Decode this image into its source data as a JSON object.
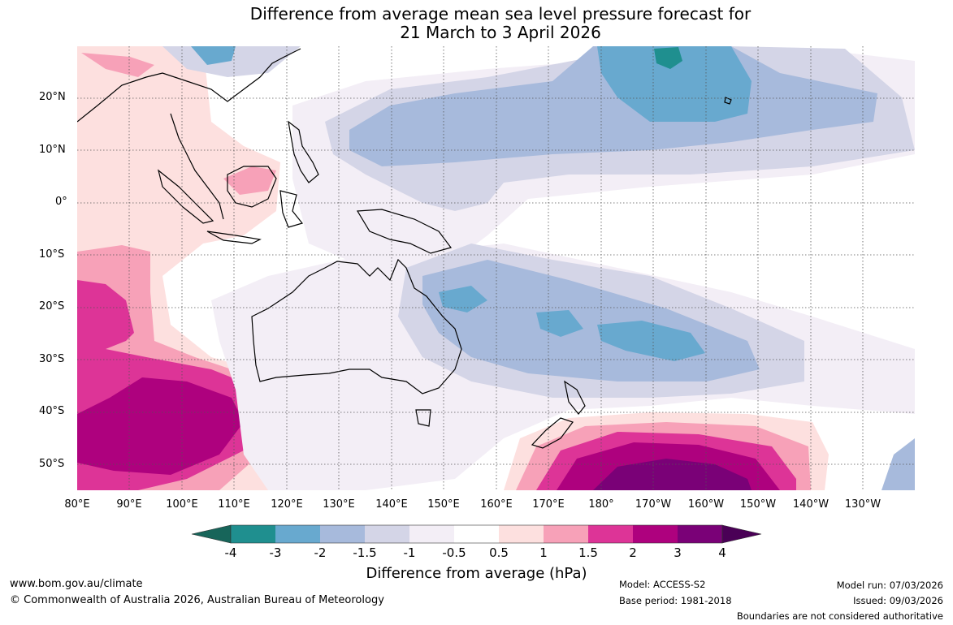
{
  "title": {
    "line1": "Difference from average mean sea level pressure forecast for",
    "line2": "21 March to 3 April 2026"
  },
  "map": {
    "lat_labels": [
      "20°N",
      "10°N",
      "0°",
      "10°S",
      "20°S",
      "30°S",
      "40°S",
      "50°S"
    ],
    "lon_labels": [
      "80°E",
      "90°E",
      "100°E",
      "110°E",
      "120°E",
      "130°E",
      "140°E",
      "150°E",
      "160°E",
      "170°E",
      "180°",
      "170°W",
      "160°W",
      "150°W",
      "140°W",
      "130°W"
    ]
  },
  "colorbar": {
    "title": "Difference from average (hPa)",
    "labels": [
      "-4",
      "-3",
      "-2",
      "-1.5",
      "-1",
      "-0.5",
      "0.5",
      "1",
      "1.5",
      "2",
      "3",
      "4"
    ],
    "colors": [
      "#17655a",
      "#1f8f8f",
      "#68a9cf",
      "#a7badc",
      "#d4d5e7",
      "#f3eef6",
      "#ffffff",
      "#fde0df",
      "#f7a1b8",
      "#dd3497",
      "#ae017e",
      "#7a0177",
      "#4a0056"
    ]
  },
  "footer": {
    "website": "www.bom.gov.au/climate",
    "copyright": "© Commonwealth of Australia 2026, Australian Bureau of Meteorology",
    "model": "Model: ACCESS-S2",
    "base_period": "Base period: 1981-2018",
    "model_run": "Model run: 07/03/2026",
    "issued": "Issued: 09/03/2026",
    "disclaimer": "Boundaries are not considered authoritative"
  }
}
